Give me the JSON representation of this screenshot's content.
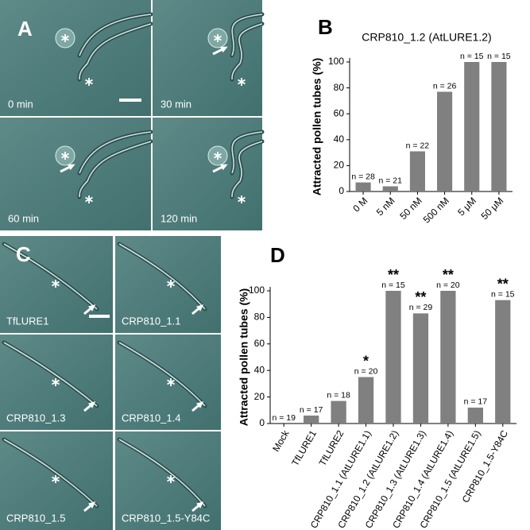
{
  "panels": {
    "A": {
      "label": "A",
      "captions": [
        "0 min",
        "30 min",
        "60 min",
        "120 min"
      ]
    },
    "C": {
      "label": "C",
      "captions": [
        "TfLURE1",
        "CRP810_1.1",
        "CRP810_1.3",
        "CRP810_1.4",
        "CRP810_1.5",
        "CRP810_1.5-Y84C"
      ]
    }
  },
  "chart_data": [
    {
      "type": "bar",
      "panel_label": "B",
      "title": "CRP810_1.2 (AtLURE1.2)",
      "ylabel": "Attracted pollen tubes (%)",
      "categories": [
        "0 M",
        "5 nM",
        "50 nM",
        "500 nM",
        "5 μM",
        "50 μM"
      ],
      "values": [
        7,
        4,
        31,
        77,
        100,
        100
      ],
      "n_labels": [
        "n = 28",
        "n = 21",
        "n = 22",
        "n = 26",
        "n = 15",
        "n = 15"
      ],
      "color": "#808080",
      "ylim": [
        0,
        100
      ],
      "yticks": [
        0,
        20,
        40,
        60,
        80,
        100
      ]
    },
    {
      "type": "bar",
      "panel_label": "D",
      "ylabel": "Attracted pollen tubes (%)",
      "categories": [
        "Mock",
        "TfLURE1",
        "TfLURE2",
        "CRP810_1.1 (AtLURE1.1)",
        "CRP810_1.2 (AtLURE1.2)",
        "CRP810_1.3 (AtLURE1.3)",
        "CRP810_1.4 (AtLURE1.4)",
        "CRP810_1.5 (AtLURE1.5)",
        "CRP810_1.5-Y84C"
      ],
      "values": [
        0,
        6,
        17,
        35,
        100,
        83,
        100,
        12,
        93
      ],
      "n_labels": [
        "n = 19",
        "n = 17",
        "n = 18",
        "n = 20",
        "n = 15",
        "n = 29",
        "n = 20",
        "n = 17",
        "n = 15"
      ],
      "significance": [
        null,
        null,
        null,
        "*",
        "**",
        "**",
        "**",
        null,
        "**"
      ],
      "color": "#808080",
      "ylim": [
        0,
        100
      ],
      "yticks": [
        0,
        20,
        40,
        60,
        80,
        100
      ]
    }
  ]
}
